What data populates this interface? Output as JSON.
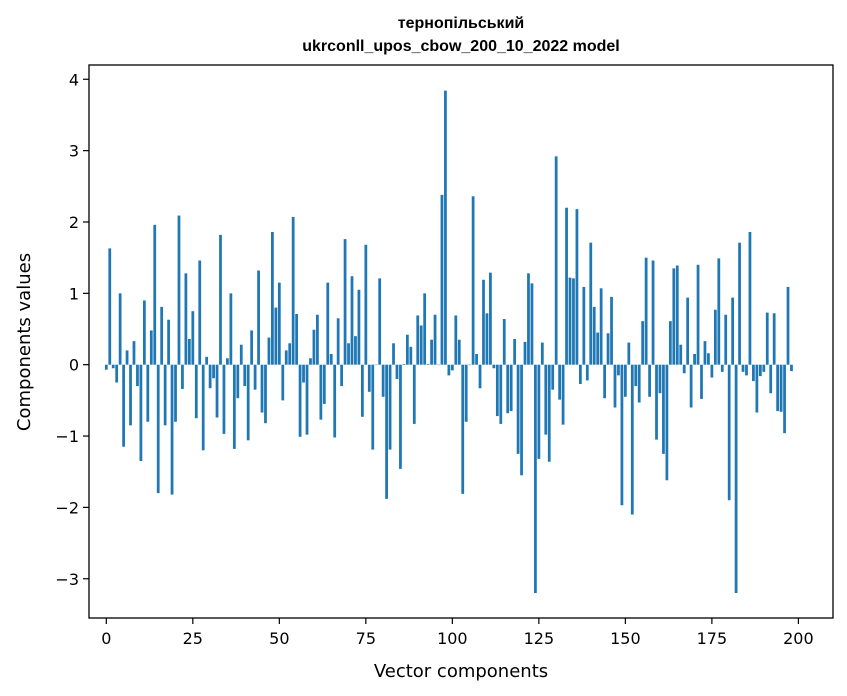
{
  "chart_data": {
    "type": "bar",
    "title": "тернопільський",
    "subtitle": "ukrconll_upos_cbow_200_10_2022 model",
    "xlabel": "Vector components",
    "ylabel": "Components values",
    "xlim": [
      -5,
      210
    ],
    "ylim": [
      -3.55,
      4.2
    ],
    "xticks": [
      0,
      25,
      50,
      75,
      100,
      125,
      150,
      175,
      200
    ],
    "yticks": [
      -3,
      -2,
      -1,
      0,
      1,
      2,
      3,
      4
    ],
    "color": "#1f77b4",
    "grid": false,
    "values": [
      -0.07,
      1.63,
      -0.05,
      -0.25,
      1.0,
      -1.15,
      0.2,
      -0.85,
      0.33,
      -0.3,
      -1.35,
      0.9,
      -0.8,
      0.48,
      1.96,
      -1.8,
      0.81,
      -0.85,
      0.63,
      -1.82,
      -0.8,
      2.09,
      -0.34,
      1.28,
      0.36,
      0.75,
      -0.75,
      1.46,
      -1.2,
      0.11,
      -0.33,
      -0.19,
      -0.74,
      1.82,
      -0.97,
      0.09,
      1.0,
      -1.18,
      -0.47,
      0.28,
      -0.3,
      -1.06,
      0.48,
      -0.35,
      1.32,
      -0.67,
      -0.82,
      0.38,
      1.86,
      0.8,
      1.15,
      -0.5,
      0.2,
      0.3,
      2.07,
      0.71,
      -1.01,
      -0.25,
      -0.98,
      0.09,
      0.49,
      0.7,
      -0.77,
      -0.55,
      1.15,
      0.15,
      -1.02,
      0.65,
      -0.3,
      1.76,
      0.3,
      1.24,
      0.4,
      1.05,
      -0.73,
      1.68,
      -0.38,
      -1.19,
      0.0,
      1.21,
      -0.45,
      -1.88,
      -1.19,
      0.3,
      -0.2,
      -1.46,
      0.01,
      0.42,
      0.25,
      -0.83,
      0.69,
      0.55,
      1.0,
      0.01,
      0.35,
      0.7,
      0.0,
      2.38,
      3.84,
      -0.15,
      -0.08,
      0.69,
      0.35,
      -1.81,
      -0.8,
      0.0,
      2.36,
      0.15,
      -0.33,
      1.19,
      0.72,
      1.29,
      -0.05,
      -0.72,
      -0.83,
      0.64,
      -0.68,
      -0.65,
      0.36,
      -1.25,
      -1.55,
      0.32,
      1.28,
      1.14,
      -3.2,
      -1.32,
      0.31,
      -0.98,
      -1.36,
      -0.35,
      2.92,
      -0.49,
      -0.84,
      2.2,
      1.22,
      1.21,
      2.18,
      -0.27,
      1.09,
      -0.22,
      1.71,
      0.81,
      0.45,
      1.07,
      -0.47,
      0.44,
      0.95,
      -0.6,
      -0.15,
      -1.97,
      -0.45,
      0.31,
      -2.1,
      -0.3,
      -0.53,
      0.61,
      1.5,
      -0.45,
      1.46,
      -1.05,
      -0.4,
      -1.25,
      -1.62,
      0.61,
      1.35,
      1.39,
      0.28,
      -0.12,
      0.94,
      -0.6,
      0.15,
      1.4,
      -0.48,
      0.33,
      0.16,
      -0.18,
      0.77,
      1.49,
      -0.1,
      0.7,
      -1.9,
      0.94,
      -3.2,
      1.71,
      -0.1,
      -0.15,
      1.86,
      -0.23,
      -0.67,
      -0.16,
      -0.1,
      0.73,
      -0.4,
      0.72,
      -0.65,
      -0.66,
      -0.96,
      1.09,
      -0.09
    ]
  }
}
